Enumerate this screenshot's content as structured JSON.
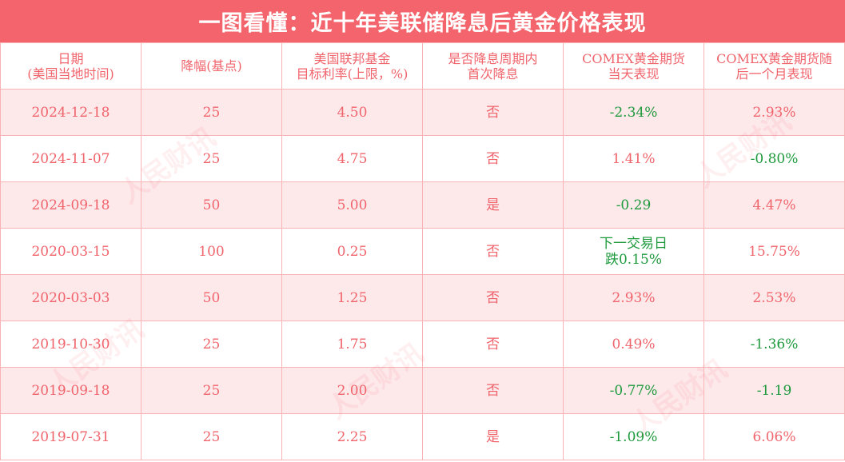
{
  "title": "一图看懂：近十年美联储降息后黄金价格表现",
  "watermark": "人民财讯",
  "colors": {
    "title_bg": "#f4646c",
    "positive_text": "#f0646c",
    "negative_text": "#1e9a3d",
    "alt_row_bg": "#fde8ea"
  },
  "columns": [
    {
      "line1": "日期",
      "line2": "(美国当地时间)"
    },
    {
      "line1": "降幅(基点)",
      "line2": ""
    },
    {
      "line1": "美国联邦基金",
      "line2": "目标利率(上限，%)"
    },
    {
      "line1": "是否降息周期内",
      "line2": "首次降息"
    },
    {
      "line1": "COMEX黄金期货",
      "line2": "当天表现"
    },
    {
      "line1": "COMEX黄金期货随",
      "line2": "后一个月表现"
    }
  ],
  "rows": [
    {
      "date": "2024-12-18",
      "cut": "25",
      "rate": "4.50",
      "first": "否",
      "day": "-2.34%",
      "day_neg": true,
      "month": "2.93%",
      "month_neg": false
    },
    {
      "date": "2024-11-07",
      "cut": "25",
      "rate": "4.75",
      "first": "否",
      "day": "1.41%",
      "day_neg": false,
      "month": "-0.80%",
      "month_neg": true
    },
    {
      "date": "2024-09-18",
      "cut": "50",
      "rate": "5.00",
      "first": "是",
      "day": "-0.29",
      "day_neg": true,
      "month": "4.47%",
      "month_neg": false
    },
    {
      "date": "2020-03-15",
      "cut": "100",
      "rate": "0.25",
      "first": "否",
      "day": "下一交易日\n跌0.15%",
      "day_neg": true,
      "month": "15.75%",
      "month_neg": false
    },
    {
      "date": "2020-03-03",
      "cut": "50",
      "rate": "1.25",
      "first": "否",
      "day": "2.93%",
      "day_neg": false,
      "month": "2.53%",
      "month_neg": false
    },
    {
      "date": "2019-10-30",
      "cut": "25",
      "rate": "1.75",
      "first": "否",
      "day": "0.49%",
      "day_neg": false,
      "month": "-1.36%",
      "month_neg": true
    },
    {
      "date": "2019-09-18",
      "cut": "25",
      "rate": "2.00",
      "first": "否",
      "day": "-0.77%",
      "day_neg": true,
      "month": "-1.19",
      "month_neg": true
    },
    {
      "date": "2019-07-31",
      "cut": "25",
      "rate": "2.25",
      "first": "是",
      "day": "-1.09%",
      "day_neg": true,
      "month": "6.06%",
      "month_neg": false
    }
  ]
}
